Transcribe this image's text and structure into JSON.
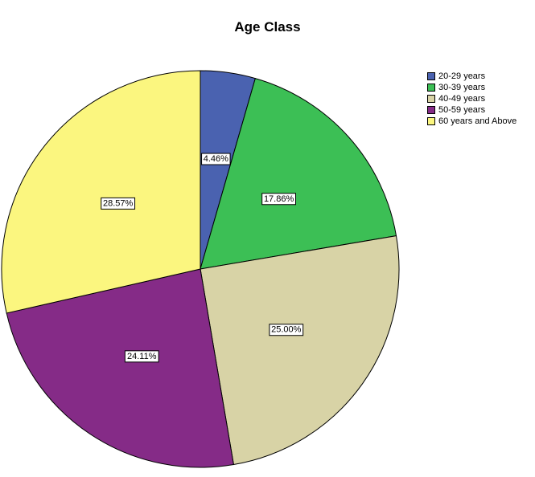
{
  "chart_data": {
    "type": "pie",
    "title": "Age Class",
    "categories": [
      "20-29 years",
      "30-39 years",
      "40-49 years",
      "50-59 years",
      "60 years and Above"
    ],
    "values": [
      4.46,
      17.86,
      25.0,
      24.11,
      28.57
    ],
    "labels": [
      "4.46%",
      "17.86%",
      "25.00%",
      "24.11%",
      "28.57%"
    ],
    "colors": [
      "#4a62b0",
      "#3cbf55",
      "#d8d3a6",
      "#852b87",
      "#fbf67f"
    ],
    "legend_position": "top-right",
    "start_angle": "12 o'clock",
    "direction": "clockwise"
  }
}
